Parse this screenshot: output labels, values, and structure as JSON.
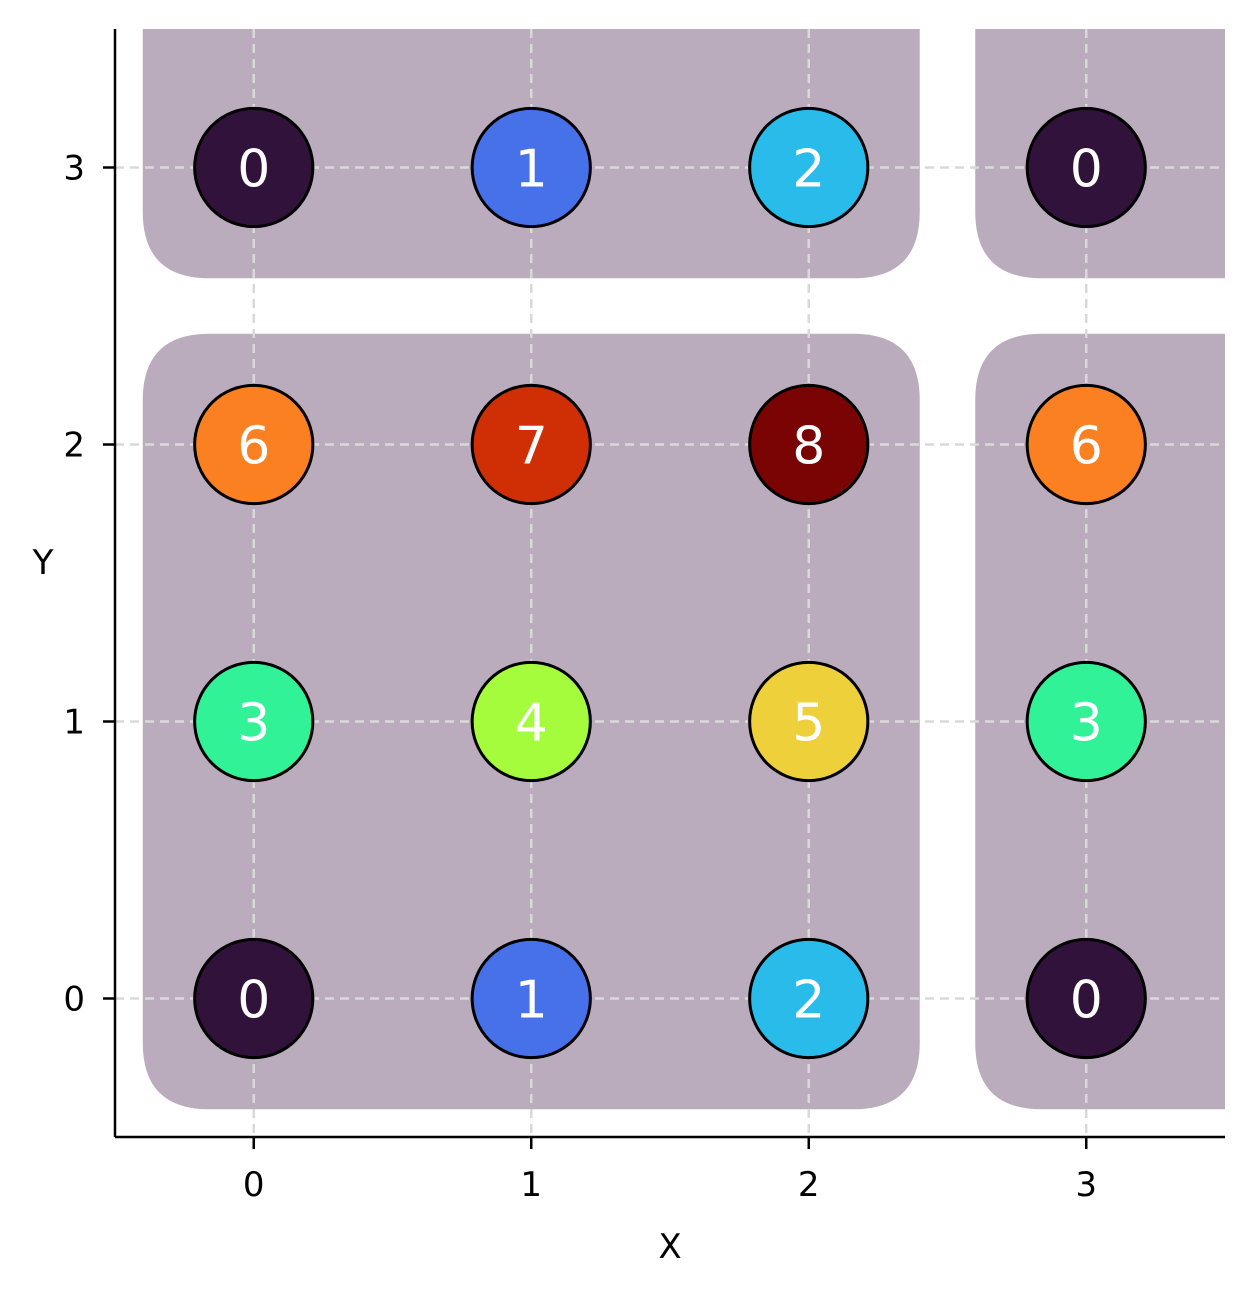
{
  "chart_data": {
    "type": "scatter",
    "title": "",
    "xlabel": "X",
    "ylabel": "Y",
    "xlim": [
      -0.5,
      3.5
    ],
    "ylim": [
      -0.5,
      3.5
    ],
    "xticks": [
      "0",
      "1",
      "2",
      "3"
    ],
    "yticks": [
      "0",
      "1",
      "2",
      "3"
    ],
    "grid": true,
    "grid_style": "dashed",
    "points": [
      {
        "x": 0,
        "y": 0,
        "label": "0",
        "color": "#30123b"
      },
      {
        "x": 1,
        "y": 0,
        "label": "1",
        "color": "#4771e8"
      },
      {
        "x": 2,
        "y": 0,
        "label": "2",
        "color": "#29bceb"
      },
      {
        "x": 3,
        "y": 0,
        "label": "0",
        "color": "#30123b"
      },
      {
        "x": 0,
        "y": 1,
        "label": "3",
        "color": "#32f298"
      },
      {
        "x": 1,
        "y": 1,
        "label": "4",
        "color": "#a4fc3c"
      },
      {
        "x": 2,
        "y": 1,
        "label": "5",
        "color": "#edd03a"
      },
      {
        "x": 3,
        "y": 1,
        "label": "3",
        "color": "#32f298"
      },
      {
        "x": 0,
        "y": 2,
        "label": "6",
        "color": "#fb8022"
      },
      {
        "x": 1,
        "y": 2,
        "label": "7",
        "color": "#d02f05"
      },
      {
        "x": 2,
        "y": 2,
        "label": "8",
        "color": "#7a0403"
      },
      {
        "x": 3,
        "y": 2,
        "label": "6",
        "color": "#fb8022"
      },
      {
        "x": 0,
        "y": 3,
        "label": "0",
        "color": "#30123b"
      },
      {
        "x": 1,
        "y": 3,
        "label": "1",
        "color": "#4771e8"
      },
      {
        "x": 2,
        "y": 3,
        "label": "2",
        "color": "#29bceb"
      },
      {
        "x": 3,
        "y": 3,
        "label": "0",
        "color": "#30123b"
      }
    ],
    "regions": [
      {
        "x": [
          -0.4,
          2.4
        ],
        "y": [
          -0.4,
          2.4
        ],
        "color": "#bbacbd"
      },
      {
        "x": [
          2.6,
          3.5
        ],
        "y": [
          -0.4,
          2.4
        ],
        "color": "#bbacbd"
      },
      {
        "x": [
          -0.4,
          2.4
        ],
        "y": [
          2.6,
          3.5
        ],
        "color": "#bbacbd"
      },
      {
        "x": [
          2.6,
          3.5
        ],
        "y": [
          2.6,
          3.5
        ],
        "color": "#bbacbd"
      }
    ]
  }
}
